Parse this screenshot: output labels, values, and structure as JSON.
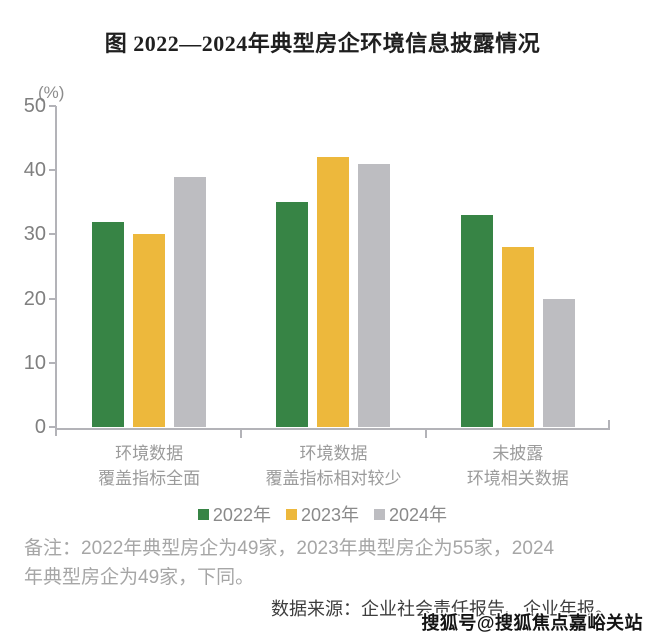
{
  "title": "图  2022—2024年典型房企环境信息披露情况",
  "chart_data": {
    "type": "bar",
    "title": "2022—2024年典型房企环境信息披露情况",
    "unit_label": "(%)",
    "categories": [
      [
        "环境数据",
        "覆盖指标全面"
      ],
      [
        "环境数据",
        "覆盖指标相对较少"
      ],
      [
        "未披露",
        "环境相关数据"
      ]
    ],
    "series": [
      {
        "name": "2022年",
        "color": "#378445",
        "values": [
          32,
          35,
          33
        ]
      },
      {
        "name": "2023年",
        "color": "#EDB83C",
        "values": [
          30,
          42,
          28
        ]
      },
      {
        "name": "2024年",
        "color": "#BDBDC1",
        "values": [
          39,
          41,
          20
        ]
      }
    ],
    "ylabel": "(%)",
    "ylim": [
      0,
      50
    ],
    "yticks": [
      0,
      10,
      20,
      30,
      40,
      50
    ],
    "grid": false,
    "legend_position": "bottom"
  },
  "note_lines": [
    "备注：2022年典型房企为49家，2023年典型房企为55家，2024",
    "年典型房企为49家，下同。"
  ],
  "source": "数据来源：企业社会责任报告、企业年报。",
  "watermark": "搜狐号@搜狐焦点嘉峪关站",
  "colors": {
    "axis": "#b3b3b8",
    "tick_label": "#7f7f7f",
    "category_label": "#9b9b9b",
    "note": "#a6a6a6",
    "title": "#1f1f1f"
  }
}
